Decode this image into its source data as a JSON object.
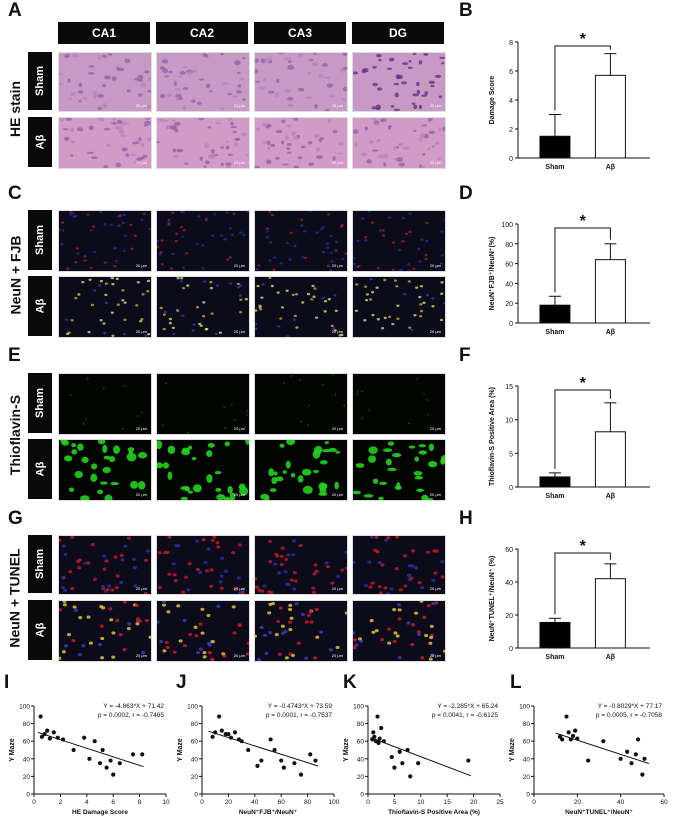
{
  "figure": {
    "panel_letters": [
      "A",
      "B",
      "C",
      "D",
      "E",
      "F",
      "G",
      "H",
      "I",
      "J",
      "K",
      "L"
    ],
    "regions": [
      "CA1",
      "CA2",
      "CA3",
      "DG"
    ],
    "groups": [
      "Sham",
      "Aβ"
    ],
    "stain_labels": [
      "HE stain",
      "NeuN + FJB",
      "Thioflavin-S",
      "NeuN + TUNEL"
    ],
    "scale_label": "20 μm"
  },
  "colors": {
    "he_sham": "#c79ac6",
    "he_ab": "#d29ac7",
    "fluor_bg": "#0b0b1a",
    "thio_bg": "#020402",
    "thio_green": "#22d11f",
    "tunel_red": "#c51a2c",
    "bar_sham": "#000000",
    "bar_ab": "#ffffff"
  },
  "chart_data": [
    {
      "id": "B",
      "type": "bar",
      "categories": [
        "Sham",
        "Aβ"
      ],
      "values": [
        1.5,
        5.7
      ],
      "errors": [
        1.5,
        1.5
      ],
      "ylabel": "Damage Score",
      "ylim": [
        0,
        8
      ],
      "yticks": [
        0,
        2,
        4,
        6,
        8
      ],
      "significance": "*"
    },
    {
      "id": "D",
      "type": "bar",
      "categories": [
        "Sham",
        "Aβ"
      ],
      "values": [
        18,
        64
      ],
      "errors": [
        9,
        16
      ],
      "ylabel": "NeuN⁺FJB⁺/NeuN⁺(%)",
      "ylim": [
        0,
        100
      ],
      "yticks": [
        0,
        20,
        40,
        60,
        80,
        100
      ],
      "significance": "*"
    },
    {
      "id": "F",
      "type": "bar",
      "categories": [
        "Sham",
        "Aβ"
      ],
      "values": [
        1.5,
        8.2
      ],
      "errors": [
        0.6,
        4.3
      ],
      "ylabel": "Thioflavin-S Positive Area (%)",
      "ylim": [
        0,
        15
      ],
      "yticks": [
        0,
        5,
        10,
        15
      ],
      "significance": "*"
    },
    {
      "id": "H",
      "type": "bar",
      "categories": [
        "Sham",
        "Aβ"
      ],
      "values": [
        15.5,
        42
      ],
      "errors": [
        2.5,
        9
      ],
      "ylabel": "NeuN⁺TUNEL⁺/NeuN⁺ (%)",
      "ylim": [
        0,
        60
      ],
      "yticks": [
        0,
        20,
        40,
        60
      ],
      "significance": "*"
    },
    {
      "id": "I",
      "type": "scatter",
      "xlabel": "HE Damage Score",
      "ylabel": "Y Maze",
      "xlim": [
        0,
        10
      ],
      "ylim": [
        0,
        100
      ],
      "xticks": [
        0,
        2,
        4,
        6,
        8,
        10
      ],
      "yticks": [
        0,
        20,
        40,
        60,
        80,
        100
      ],
      "equation": "Y = -4.863*X + 71.42",
      "stats": "p = 0.0002, r = -0.7465",
      "fit": {
        "slope": -4.863,
        "intercept": 71.42,
        "x_range": [
          0.3,
          8.3
        ]
      },
      "x": [
        0.5,
        0.6,
        0.8,
        1.0,
        1.2,
        1.5,
        1.8,
        2.2,
        3.0,
        3.8,
        4.2,
        4.6,
        5.0,
        5.2,
        5.5,
        5.8,
        6.0,
        6.5,
        7.5,
        8.2
      ],
      "y": [
        88,
        65,
        68,
        72,
        63,
        70,
        64,
        62,
        50,
        64,
        40,
        60,
        35,
        50,
        30,
        38,
        22,
        35,
        45,
        45
      ]
    },
    {
      "id": "J",
      "type": "scatter",
      "xlabel": "NeuN⁺FJB⁺/NeuN⁺",
      "ylabel": "Y Maze",
      "xlim": [
        0,
        100
      ],
      "ylim": [
        0,
        100
      ],
      "xticks": [
        0,
        20,
        40,
        60,
        80,
        100
      ],
      "yticks": [
        0,
        20,
        40,
        60,
        80,
        100
      ],
      "equation": "Y = -0.4743*X + 73.59",
      "stats": "p = 0.0001, r = -0.7537",
      "fit": {
        "slope": -0.4743,
        "intercept": 73.59,
        "x_range": [
          5,
          88
        ]
      },
      "x": [
        8,
        10,
        13,
        15,
        18,
        20,
        22,
        25,
        28,
        30,
        35,
        42,
        45,
        52,
        55,
        60,
        62,
        70,
        75,
        82,
        86
      ],
      "y": [
        65,
        70,
        88,
        72,
        68,
        68,
        64,
        70,
        62,
        60,
        50,
        32,
        38,
        62,
        50,
        38,
        30,
        35,
        22,
        45,
        38
      ],
      "ylim_label": true
    },
    {
      "id": "K",
      "type": "scatter",
      "xlabel": "Thioflavin-S Positive Area (%)",
      "ylabel": "Y Maze",
      "xlim": [
        0,
        25
      ],
      "ylim": [
        0,
        100
      ],
      "xticks": [
        0,
        5,
        10,
        15,
        20,
        25
      ],
      "yticks": [
        0,
        20,
        40,
        60,
        80,
        100
      ],
      "equation": "Y = -2.285*X + 65.24",
      "stats": "p = 0.0041, r = -0.6125",
      "fit": {
        "slope": -2.285,
        "intercept": 65.24,
        "x_range": [
          0.5,
          19.5
        ]
      },
      "x": [
        0.8,
        1.0,
        1.2,
        1.5,
        1.8,
        2.0,
        2.2,
        2.5,
        3.0,
        4.5,
        5.0,
        6.0,
        6.5,
        7.5,
        8.0,
        9.5,
        19.0
      ],
      "y": [
        62,
        70,
        65,
        60,
        88,
        58,
        63,
        75,
        60,
        42,
        30,
        48,
        35,
        50,
        20,
        35,
        38
      ]
    },
    {
      "id": "L",
      "type": "scatter",
      "xlabel": "NeuN⁺TUNEL⁺/NeuN⁺",
      "ylabel": "Y Maze",
      "xlim": [
        0,
        60
      ],
      "ylim": [
        0,
        100
      ],
      "xticks": [
        0,
        20,
        40,
        60
      ],
      "yticks": [
        0,
        20,
        40,
        60,
        80,
        100
      ],
      "equation": "Y = -0.8029*X + 77.17",
      "stats": "p = 0.0005, r = -0.7058",
      "fit": {
        "slope": -0.8029,
        "intercept": 77.17,
        "x_range": [
          10,
          53
        ]
      },
      "x": [
        12,
        13,
        15,
        16,
        17,
        18,
        19,
        20,
        25,
        32,
        40,
        43,
        45,
        47,
        48,
        50,
        51
      ],
      "y": [
        65,
        62,
        88,
        70,
        62,
        66,
        72,
        63,
        38,
        60,
        40,
        48,
        35,
        45,
        62,
        22,
        40
      ]
    }
  ]
}
